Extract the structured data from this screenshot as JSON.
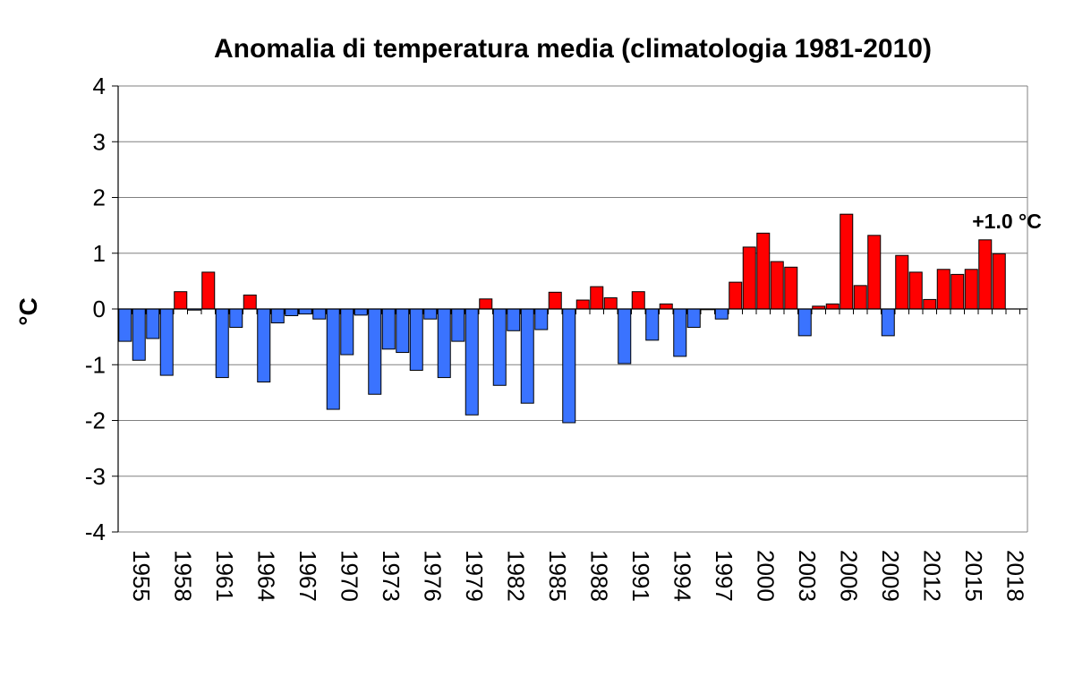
{
  "chart_data": {
    "type": "bar",
    "title": "Anomalia di temperatura media (climatologia 1981-2010)",
    "xlabel": "",
    "ylabel": "°C",
    "ylim": [
      -4,
      4
    ],
    "yticks": [
      4,
      3,
      2,
      1,
      0,
      -1,
      -2,
      -3,
      -4
    ],
    "grid": true,
    "x_start_year": 1955,
    "x_tick_labels": [
      "1955",
      "1958",
      "1961",
      "1964",
      "1967",
      "1970",
      "1973",
      "1976",
      "1979",
      "1982",
      "1985",
      "1988",
      "1991",
      "1994",
      "1997",
      "2000",
      "2003",
      "2006",
      "2009",
      "2012",
      "2015",
      "2018"
    ],
    "years": [
      1955,
      1956,
      1957,
      1958,
      1959,
      1960,
      1961,
      1962,
      1963,
      1964,
      1965,
      1966,
      1967,
      1968,
      1969,
      1970,
      1971,
      1972,
      1973,
      1974,
      1975,
      1976,
      1977,
      1978,
      1979,
      1980,
      1981,
      1982,
      1983,
      1984,
      1985,
      1986,
      1987,
      1988,
      1989,
      1990,
      1991,
      1992,
      1993,
      1994,
      1995,
      1996,
      1997,
      1998,
      1999,
      2000,
      2001,
      2002,
      2003,
      2004,
      2005,
      2006,
      2007,
      2008,
      2009,
      2010,
      2011,
      2012,
      2013,
      2014,
      2015,
      2016,
      2017,
      2018
    ],
    "values": [
      -0.58,
      -0.92,
      -0.53,
      -1.19,
      0.31,
      -0.02,
      0.66,
      -1.23,
      -0.33,
      0.25,
      -1.31,
      -0.25,
      -0.12,
      -0.09,
      -0.18,
      -1.8,
      -0.82,
      -0.11,
      -1.53,
      -0.72,
      -0.78,
      -1.1,
      -0.18,
      -1.23,
      -0.58,
      -1.9,
      0.18,
      -1.37,
      -0.39,
      -1.69,
      -0.37,
      0.3,
      -2.04,
      0.16,
      0.4,
      0.2,
      -0.98,
      0.31,
      -0.56,
      0.09,
      -0.85,
      -0.33,
      -0.01,
      -0.18,
      0.48,
      1.11,
      1.36,
      0.85,
      0.75,
      -0.48,
      0.05,
      0.09,
      1.7,
      0.42,
      1.32,
      -0.48,
      0.96,
      0.66,
      0.17,
      0.71,
      0.62,
      0.71,
      1.24,
      0.99
    ],
    "colors": {
      "positive": "#ff0000",
      "negative": "#3a73ff",
      "grid": "#808080",
      "edge": "#000000"
    },
    "annotation": {
      "text": "+1.0 °C",
      "year": 2018
    }
  }
}
